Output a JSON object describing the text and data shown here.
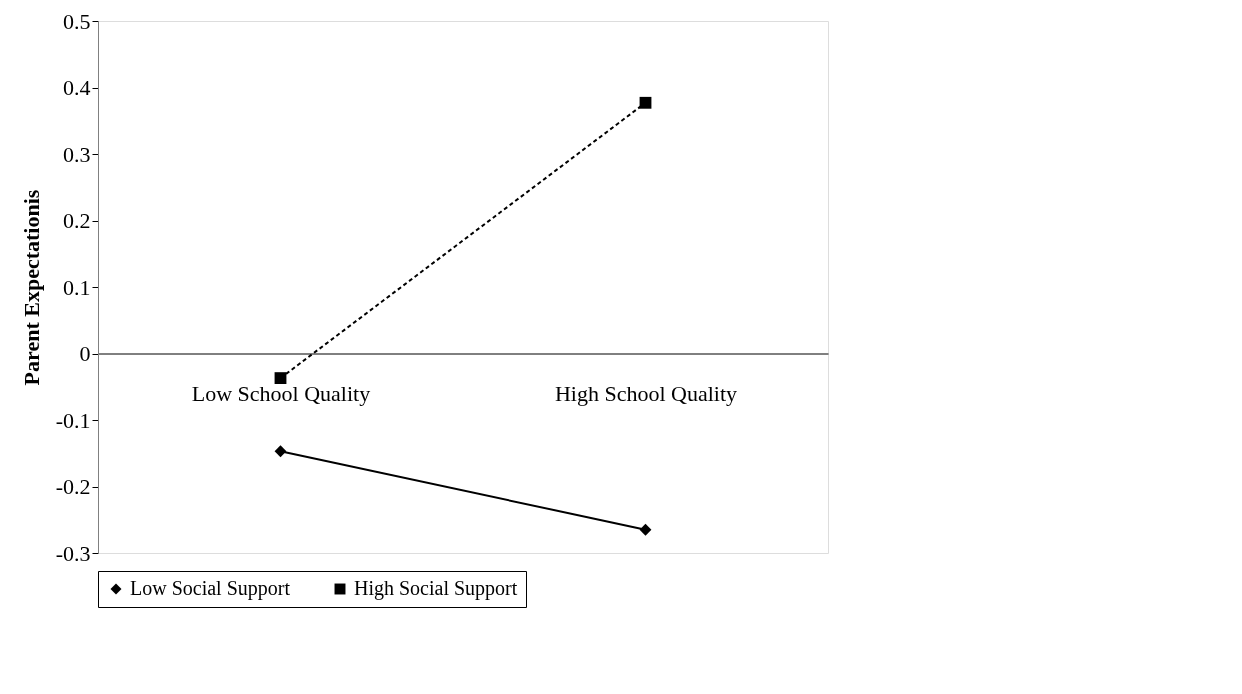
{
  "chart_data": {
    "type": "line",
    "ylabel": "Parent Expectationis",
    "categories": [
      "Low School Quality",
      "High School Quality"
    ],
    "series": [
      {
        "name": "Low Social Support",
        "color": "#000000",
        "values": [
          -0.147,
          -0.265
        ],
        "marker": "diamond",
        "line_style": "solid"
      },
      {
        "name": "High Social Support",
        "color": "#000000",
        "values": [
          -0.037,
          0.377
        ],
        "marker": "square",
        "line_style": "dashed"
      }
    ],
    "ylim": [
      -0.3,
      0.5
    ],
    "yticks": [
      -0.3,
      -0.2,
      -0.1,
      0,
      0.1,
      0.2,
      0.3,
      0.4,
      0.5
    ],
    "grid": false,
    "legend": "bottom"
  }
}
